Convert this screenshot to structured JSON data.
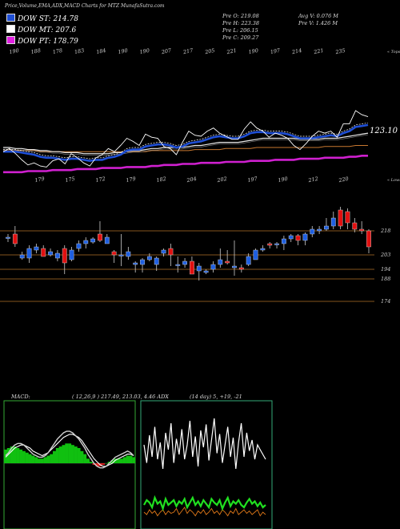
{
  "header": {
    "title": "Price,Volume,EMA,ADX,MACD Charts for MTZ MunafaSutra.com"
  },
  "legend": [
    {
      "label": "DOW ST: 214.78",
      "color": "#1f4fd6"
    },
    {
      "label": "DOW MT: 207.6",
      "color": "#ffffff"
    },
    {
      "label": "DOW PT: 178.79",
      "color": "#e020e0"
    }
  ],
  "stats": {
    "pre_o": "Pre   O: 219.08",
    "pre_h": "Pre   H: 223.38",
    "pre_l": "Pre   L: 206.15",
    "pre_c": "Pre   C: 209.27",
    "avg_v": "Avg V: 0.076   M",
    "pre_v": "Pre   V: 1.426   M"
  },
  "chart_data": [
    {
      "type": "line",
      "name": "ema-panel",
      "right_value": "123.10",
      "top_tag": "« Tops",
      "bottom_tag": "« Lows",
      "top_labels": [
        "190",
        "188",
        "178",
        "183",
        "184",
        "190",
        "190",
        "207",
        "217",
        "205",
        "221",
        "190",
        "197",
        "214",
        "221",
        "235"
      ],
      "low_labels": [
        "179",
        "175",
        "172",
        "179",
        "182",
        "204",
        "202",
        "197",
        "190",
        "212",
        "220"
      ],
      "x_count": 60,
      "price": [
        198,
        201,
        196,
        190,
        185,
        187,
        184,
        183,
        189,
        191,
        186,
        196,
        192,
        187,
        184,
        192,
        195,
        201,
        198,
        204,
        211,
        208,
        204,
        215,
        212,
        211,
        203,
        201,
        195,
        207,
        218,
        214,
        213,
        218,
        221,
        216,
        213,
        210,
        210,
        220,
        227,
        221,
        218,
        212,
        216,
        214,
        211,
        204,
        200,
        206,
        213,
        218,
        216,
        218,
        212,
        225,
        225,
        238,
        234,
        232
      ],
      "ema_fast": [
        198,
        198,
        198,
        197,
        196,
        195,
        193,
        192,
        192,
        191,
        190,
        191,
        191,
        190,
        189,
        190,
        190,
        192,
        193,
        195,
        199,
        200,
        200,
        203,
        204,
        205,
        205,
        204,
        202,
        203,
        206,
        207,
        208,
        210,
        212,
        213,
        212,
        211,
        211,
        213,
        216,
        217,
        217,
        216,
        216,
        216,
        215,
        213,
        211,
        211,
        211,
        212,
        213,
        214,
        213,
        216,
        218,
        222,
        223,
        224
      ],
      "ema_mid": [
        202,
        202,
        201,
        201,
        200,
        200,
        199,
        199,
        198,
        198,
        197,
        197,
        197,
        196,
        196,
        196,
        196,
        196,
        197,
        197,
        198,
        199,
        199,
        200,
        201,
        201,
        202,
        202,
        202,
        202,
        203,
        204,
        204,
        205,
        206,
        207,
        207,
        207,
        207,
        208,
        209,
        210,
        211,
        211,
        211,
        211,
        211,
        211,
        210,
        210,
        210,
        210,
        211,
        211,
        211,
        212,
        213,
        214,
        215,
        216
      ],
      "ema_slow": [
        199,
        199,
        199,
        199,
        199,
        199,
        198,
        198,
        198,
        198,
        198,
        198,
        198,
        198,
        198,
        198,
        198,
        198,
        198,
        198,
        198,
        198,
        198,
        198,
        199,
        199,
        199,
        199,
        199,
        199,
        199,
        200,
        200,
        200,
        200,
        200,
        201,
        201,
        201,
        201,
        201,
        202,
        202,
        202,
        202,
        202,
        202,
        202,
        202,
        202,
        202,
        202,
        203,
        203,
        203,
        203,
        203,
        204,
        204,
        204
      ],
      "ema_pt": [
        178,
        178,
        178,
        178,
        179,
        179,
        179,
        179,
        180,
        180,
        180,
        180,
        181,
        181,
        181,
        181,
        182,
        182,
        182,
        182,
        183,
        183,
        183,
        183,
        184,
        184,
        185,
        185,
        185,
        186,
        186,
        186,
        187,
        187,
        187,
        187,
        188,
        188,
        188,
        188,
        189,
        189,
        189,
        189,
        190,
        190,
        190,
        190,
        191,
        191,
        191,
        191,
        192,
        192,
        192,
        192,
        193,
        193,
        194,
        194
      ]
    },
    {
      "type": "candlestick",
      "name": "price-panel",
      "levels": [
        "218",
        "203",
        "194",
        "188",
        "174"
      ],
      "level_values": [
        218,
        203,
        194,
        188,
        174
      ],
      "candles": [
        {
          "o": 214,
          "h": 216,
          "l": 211,
          "c": 214
        },
        {
          "o": 216,
          "h": 221,
          "l": 208,
          "c": 210
        },
        {
          "o": 201,
          "h": 205,
          "l": 200,
          "c": 203
        },
        {
          "o": 201,
          "h": 209,
          "l": 198,
          "c": 207
        },
        {
          "o": 206,
          "h": 210,
          "l": 204,
          "c": 208
        },
        {
          "o": 207,
          "h": 209,
          "l": 202,
          "c": 202
        },
        {
          "o": 203,
          "h": 207,
          "l": 202,
          "c": 205
        },
        {
          "o": 201,
          "h": 206,
          "l": 199,
          "c": 204
        },
        {
          "o": 207,
          "h": 209,
          "l": 191,
          "c": 198
        },
        {
          "o": 200,
          "h": 208,
          "l": 199,
          "c": 206
        },
        {
          "o": 207,
          "h": 212,
          "l": 205,
          "c": 210
        },
        {
          "o": 210,
          "h": 214,
          "l": 207,
          "c": 212
        },
        {
          "o": 211,
          "h": 214,
          "l": 210,
          "c": 213
        },
        {
          "o": 216,
          "h": 224,
          "l": 211,
          "c": 212
        },
        {
          "o": 210,
          "h": 216,
          "l": 210,
          "c": 214
        },
        {
          "o": 205,
          "h": 206,
          "l": 198,
          "c": 203
        },
        {
          "o": 203,
          "h": 216,
          "l": 196,
          "c": 203
        },
        {
          "o": 202,
          "h": 208,
          "l": 200,
          "c": 205
        },
        {
          "o": 197,
          "h": 199,
          "l": 192,
          "c": 198
        },
        {
          "o": 197,
          "h": 201,
          "l": 192,
          "c": 200
        },
        {
          "o": 200,
          "h": 204,
          "l": 199,
          "c": 202
        },
        {
          "o": 197,
          "h": 202,
          "l": 193,
          "c": 201
        },
        {
          "o": 204,
          "h": 207,
          "l": 202,
          "c": 206
        },
        {
          "o": 207,
          "h": 210,
          "l": 196,
          "c": 203
        },
        {
          "o": 197,
          "h": 202,
          "l": 192,
          "c": 197
        },
        {
          "o": 197,
          "h": 201,
          "l": 195,
          "c": 199
        },
        {
          "o": 199,
          "h": 202,
          "l": 191,
          "c": 191
        },
        {
          "o": 193,
          "h": 198,
          "l": 187,
          "c": 196
        },
        {
          "o": 192,
          "h": 194,
          "l": 191,
          "c": 193
        },
        {
          "o": 194,
          "h": 199,
          "l": 192,
          "c": 197
        },
        {
          "o": 197,
          "h": 207,
          "l": 195,
          "c": 200
        },
        {
          "o": 199,
          "h": 206,
          "l": 197,
          "c": 198
        },
        {
          "o": 195,
          "h": 212,
          "l": 190,
          "c": 196
        },
        {
          "o": 195,
          "h": 197,
          "l": 192,
          "c": 194
        },
        {
          "o": 197,
          "h": 204,
          "l": 196,
          "c": 202
        },
        {
          "o": 200,
          "h": 207,
          "l": 200,
          "c": 206
        },
        {
          "o": 206,
          "h": 209,
          "l": 205,
          "c": 207
        },
        {
          "o": 210,
          "h": 211,
          "l": 207,
          "c": 209
        },
        {
          "o": 210,
          "h": 211,
          "l": 207,
          "c": 210
        },
        {
          "o": 210,
          "h": 215,
          "l": 206,
          "c": 213
        },
        {
          "o": 213,
          "h": 216,
          "l": 211,
          "c": 215
        },
        {
          "o": 215,
          "h": 216,
          "l": 209,
          "c": 212
        },
        {
          "o": 212,
          "h": 217,
          "l": 209,
          "c": 216
        },
        {
          "o": 216,
          "h": 221,
          "l": 214,
          "c": 219
        },
        {
          "o": 218,
          "h": 221,
          "l": 216,
          "c": 219
        },
        {
          "o": 219,
          "h": 226,
          "l": 218,
          "c": 221
        },
        {
          "o": 221,
          "h": 230,
          "l": 219,
          "c": 226
        },
        {
          "o": 231,
          "h": 233,
          "l": 219,
          "c": 221
        },
        {
          "o": 230,
          "h": 232,
          "l": 219,
          "c": 223
        },
        {
          "o": 223,
          "h": 226,
          "l": 217,
          "c": 219
        },
        {
          "o": 219,
          "h": 224,
          "l": 216,
          "c": 218
        },
        {
          "o": 218,
          "h": 219,
          "l": 204,
          "c": 208
        }
      ]
    },
    {
      "type": "line",
      "name": "macd-panel",
      "title": "MACD:",
      "params": "( 12,26,9 ) 217.49, 213.03, 4.46 ADX",
      "hist": [
        9,
        10,
        11,
        11,
        10,
        9,
        8,
        7,
        6,
        5,
        4,
        3,
        3,
        4,
        5,
        6,
        8,
        10,
        11,
        12,
        13,
        13,
        12,
        11,
        10,
        8,
        6,
        3,
        1,
        -1,
        -2,
        -2,
        -1,
        0,
        1,
        2,
        3,
        3,
        3,
        4,
        5,
        5,
        4
      ],
      "macd": [
        5,
        7,
        10,
        12,
        13,
        13,
        12,
        10,
        8,
        6,
        5,
        4,
        4,
        5,
        7,
        10,
        13,
        16,
        18,
        20,
        21,
        21,
        20,
        18,
        16,
        13,
        10,
        6,
        3,
        0,
        -2,
        -3,
        -3,
        -2,
        0,
        2,
        4,
        5,
        6,
        7,
        8,
        7,
        5
      ],
      "signal": [
        4,
        6,
        8,
        10,
        11,
        12,
        12,
        11,
        10,
        8,
        7,
        6,
        5,
        6,
        7,
        9,
        11,
        13,
        15,
        17,
        18,
        19,
        19,
        18,
        17,
        15,
        12,
        9,
        6,
        3,
        1,
        -1,
        -2,
        -2,
        -1,
        0,
        2,
        3,
        4,
        5,
        6,
        6,
        5
      ]
    },
    {
      "type": "line",
      "name": "adx-panel",
      "title": "(14 day) 5, +19, -21",
      "white": [
        70,
        55,
        78,
        60,
        85,
        58,
        72,
        50,
        80,
        66,
        88,
        55,
        75,
        62,
        83,
        58,
        70,
        90,
        60,
        77,
        52,
        82,
        68,
        87,
        57,
        74,
        92,
        63,
        79,
        55,
        70,
        85,
        60,
        76,
        50,
        72,
        88,
        60,
        80,
        65,
        74,
        58,
        70,
        66,
        62,
        58
      ],
      "green": [
        20,
        24,
        22,
        18,
        26,
        21,
        23,
        17,
        25,
        20,
        22,
        24,
        19,
        23,
        21,
        25,
        18,
        22,
        26,
        20,
        23,
        19,
        24,
        21,
        18,
        25,
        22,
        20,
        24,
        17,
        22,
        26,
        19,
        23,
        21,
        24,
        20,
        18,
        22,
        25,
        21,
        23,
        19,
        22,
        18,
        20
      ],
      "orange": [
        14,
        12,
        16,
        13,
        15,
        11,
        14,
        16,
        12,
        15,
        13,
        14,
        17,
        12,
        15,
        18,
        13,
        16,
        14,
        11,
        15,
        13,
        16,
        12,
        14,
        17,
        13,
        15,
        12,
        16,
        14,
        11,
        15,
        13,
        17,
        12,
        14,
        16,
        13,
        15,
        12,
        14,
        16,
        11,
        14,
        12
      ]
    }
  ]
}
